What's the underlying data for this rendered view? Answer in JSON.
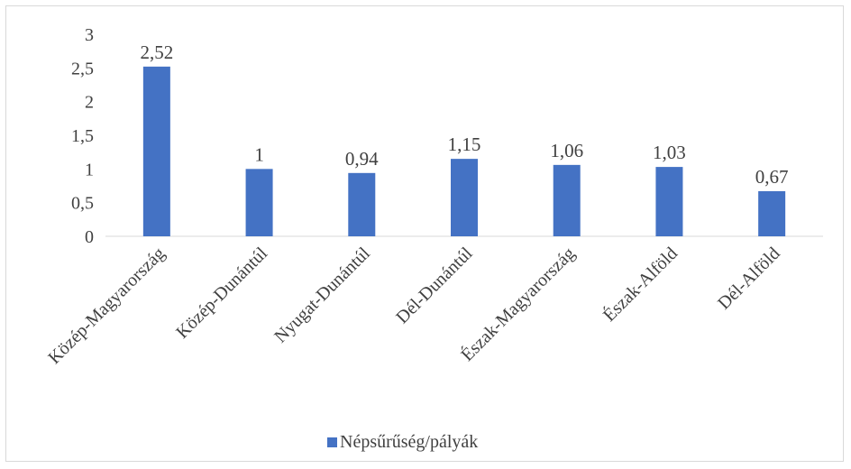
{
  "chart_data": {
    "type": "bar",
    "title": "",
    "xlabel": "",
    "ylabel": "",
    "ylim": [
      0,
      3
    ],
    "yticks": [
      "0",
      "0,5",
      "1",
      "1,5",
      "2",
      "2,5",
      "3"
    ],
    "categories": [
      "Közép-Magyarország",
      "Közép-Dunántúl",
      "Nyugat-Dunántúl",
      "Dél-Dunántúl",
      "Észak-Magyarország",
      "Észak-Alföld",
      "Dél-Alföld"
    ],
    "series": [
      {
        "name": "Népsűrűség/pályák",
        "values": [
          2.52,
          1,
          0.94,
          1.15,
          1.06,
          1.03,
          0.67
        ],
        "labels": [
          "2,52",
          "1",
          "0,94",
          "1,15",
          "1,06",
          "1,03",
          "0,67"
        ],
        "color": "#4472c4"
      }
    ],
    "grid": false,
    "legend": "bottom"
  }
}
